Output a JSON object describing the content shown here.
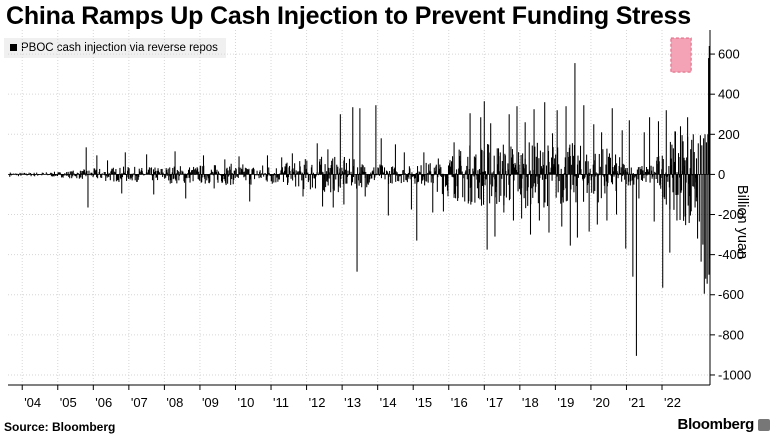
{
  "chart_data": {
    "type": "bar",
    "title": "China Ramps Up Cash Injection to Prevent Funding Stress",
    "ylabel": "Billion yuan",
    "ylim": [
      -1050,
      720
    ],
    "yticks": [
      600,
      400,
      200,
      0,
      -200,
      -400,
      -600,
      -800,
      -1000
    ],
    "ytick_labels": [
      "600",
      "400",
      "200",
      "0",
      "-200",
      "-400",
      "-600",
      "-800",
      "-1000"
    ],
    "x_tick_labels": [
      "'04",
      "'05",
      "'06",
      "'07",
      "'08",
      "'09",
      "'10",
      "'11",
      "'12",
      "'13",
      "'14",
      "'15",
      "'16",
      "'17",
      "'18",
      "'19",
      "'20",
      "'21",
      "'22"
    ],
    "x_tick_years": [
      2004,
      2005,
      2006,
      2007,
      2008,
      2009,
      2010,
      2011,
      2012,
      2013,
      2014,
      2015,
      2016,
      2017,
      2018,
      2019,
      2020,
      2021,
      2022
    ],
    "xlim_years": [
      2003.6,
      2023.35
    ],
    "grid": true,
    "legend_position": "top-left",
    "highlight": {
      "x_years": [
        2022.25,
        2022.82
      ],
      "y": [
        510,
        680
      ],
      "color": "#f4a3b6"
    },
    "series": [
      {
        "name": "PBOC cash injection via reverse repos",
        "color": "#000000",
        "baseline": [
          [
            2003.65,
            12
          ],
          [
            2004.0,
            10
          ],
          [
            2004.5,
            12
          ],
          [
            2005.0,
            14
          ],
          [
            2005.5,
            22
          ],
          [
            2006.0,
            30
          ],
          [
            2006.5,
            38
          ],
          [
            2007.0,
            40
          ],
          [
            2007.5,
            35
          ],
          [
            2008.0,
            45
          ],
          [
            2008.5,
            48
          ],
          [
            2009.0,
            50
          ],
          [
            2009.5,
            52
          ],
          [
            2010.0,
            55
          ],
          [
            2010.5,
            55
          ],
          [
            2011.0,
            55
          ],
          [
            2011.5,
            60
          ],
          [
            2011.8,
            70
          ],
          [
            2012.0,
            85
          ],
          [
            2012.5,
            95
          ],
          [
            2013.0,
            90
          ],
          [
            2013.5,
            70
          ],
          [
            2014.0,
            55
          ],
          [
            2014.5,
            45
          ],
          [
            2015.0,
            45
          ],
          [
            2015.5,
            70
          ],
          [
            2016.0,
            120
          ],
          [
            2016.5,
            150
          ],
          [
            2017.0,
            170
          ],
          [
            2017.5,
            175
          ],
          [
            2018.0,
            170
          ],
          [
            2018.5,
            165
          ],
          [
            2019.0,
            165
          ],
          [
            2019.5,
            160
          ],
          [
            2020.0,
            145
          ],
          [
            2020.5,
            135
          ],
          [
            2021.0,
            60
          ],
          [
            2021.5,
            45
          ],
          [
            2022.0,
            120
          ],
          [
            2022.5,
            250
          ],
          [
            2022.9,
            260
          ]
        ],
        "spikes": [
          [
            2005.8,
            135
          ],
          [
            2005.85,
            -165
          ],
          [
            2006.1,
            95
          ],
          [
            2006.4,
            70
          ],
          [
            2006.8,
            -95
          ],
          [
            2006.9,
            110
          ],
          [
            2007.5,
            100
          ],
          [
            2007.7,
            -100
          ],
          [
            2008.3,
            115
          ],
          [
            2008.6,
            -120
          ],
          [
            2009.1,
            95
          ],
          [
            2009.4,
            -70
          ],
          [
            2009.7,
            75
          ],
          [
            2010.1,
            90
          ],
          [
            2010.4,
            -135
          ],
          [
            2010.9,
            95
          ],
          [
            2011.3,
            85
          ],
          [
            2011.6,
            105
          ],
          [
            2011.9,
            -110
          ],
          [
            2012.3,
            155
          ],
          [
            2012.45,
            -160
          ],
          [
            2012.6,
            125
          ],
          [
            2012.75,
            -165
          ],
          [
            2012.95,
            300
          ],
          [
            2013.05,
            -150
          ],
          [
            2013.3,
            335
          ],
          [
            2013.42,
            -485
          ],
          [
            2013.5,
            330
          ],
          [
            2013.65,
            -110
          ],
          [
            2013.95,
            345
          ],
          [
            2014.1,
            180
          ],
          [
            2014.3,
            -205
          ],
          [
            2014.5,
            150
          ],
          [
            2014.75,
            110
          ],
          [
            2014.95,
            -175
          ],
          [
            2015.1,
            -330
          ],
          [
            2015.3,
            110
          ],
          [
            2015.55,
            -190
          ],
          [
            2015.85,
            -185
          ],
          [
            2016.15,
            160
          ],
          [
            2016.45,
            -135
          ],
          [
            2016.6,
            305
          ],
          [
            2016.9,
            285
          ],
          [
            2017.0,
            365
          ],
          [
            2017.08,
            -375
          ],
          [
            2017.18,
            255
          ],
          [
            2017.3,
            -310
          ],
          [
            2017.4,
            130
          ],
          [
            2017.55,
            -190
          ],
          [
            2017.7,
            300
          ],
          [
            2017.82,
            -230
          ],
          [
            2017.92,
            340
          ],
          [
            2018.05,
            -220
          ],
          [
            2018.15,
            260
          ],
          [
            2018.3,
            -300
          ],
          [
            2018.4,
            325
          ],
          [
            2018.55,
            -230
          ],
          [
            2018.7,
            360
          ],
          [
            2018.82,
            -290
          ],
          [
            2018.92,
            205
          ],
          [
            2019.05,
            320
          ],
          [
            2019.18,
            -260
          ],
          [
            2019.3,
            340
          ],
          [
            2019.42,
            -355
          ],
          [
            2019.55,
            555
          ],
          [
            2019.62,
            -315
          ],
          [
            2019.8,
            345
          ],
          [
            2019.95,
            -285
          ],
          [
            2020.08,
            250
          ],
          [
            2020.18,
            -250
          ],
          [
            2020.3,
            210
          ],
          [
            2020.45,
            -230
          ],
          [
            2020.6,
            330
          ],
          [
            2020.72,
            -200
          ],
          [
            2020.88,
            220
          ],
          [
            2020.98,
            -370
          ],
          [
            2021.08,
            270
          ],
          [
            2021.18,
            -510
          ],
          [
            2021.28,
            -905
          ],
          [
            2021.35,
            -120
          ],
          [
            2021.5,
            210
          ],
          [
            2021.65,
            285
          ],
          [
            2021.78,
            -235
          ],
          [
            2021.9,
            265
          ],
          [
            2022.02,
            -565
          ],
          [
            2022.12,
            320
          ],
          [
            2022.22,
            -390
          ],
          [
            2022.32,
            130
          ],
          [
            2022.42,
            -230
          ],
          [
            2022.52,
            240
          ],
          [
            2022.65,
            -210
          ],
          [
            2022.72,
            285
          ],
          [
            2022.8,
            -205
          ],
          [
            2022.88,
            200
          ],
          [
            2022.93,
            -165
          ],
          [
            2022.97,
            80
          ]
        ],
        "tail": [
          [
            2023.0,
            -320
          ],
          [
            2023.02,
            155
          ],
          [
            2023.05,
            -235
          ],
          [
            2023.08,
            195
          ],
          [
            2023.1,
            -435
          ],
          [
            2023.12,
            145
          ],
          [
            2023.15,
            -350
          ],
          [
            2023.17,
            180
          ],
          [
            2023.19,
            -595
          ],
          [
            2023.21,
            200
          ],
          [
            2023.23,
            -520
          ],
          [
            2023.25,
            160
          ],
          [
            2023.27,
            -545
          ],
          [
            2023.29,
            200
          ],
          [
            2023.31,
            580
          ],
          [
            2023.32,
            -500
          ],
          [
            2023.33,
            640
          ],
          [
            2023.34,
            -420
          ]
        ]
      }
    ]
  },
  "footer": {
    "source": "Source: Bloomberg",
    "brand": "Bloomberg"
  }
}
